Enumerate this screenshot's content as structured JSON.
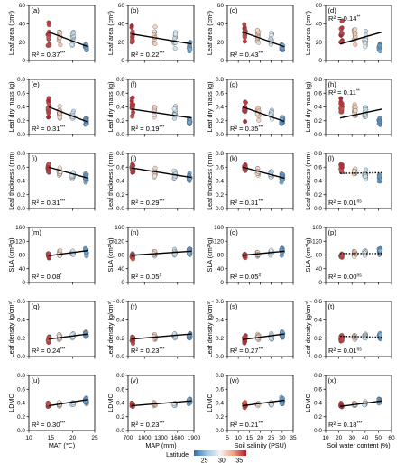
{
  "chart_data": {
    "type": "scatter",
    "legend": {
      "title": "Latitude",
      "position": "bottom-center",
      "ticks": [
        "25",
        "30",
        "35"
      ],
      "color_stops": [
        "#2c6fb0",
        "#9cc7e3",
        "#f4f4f4",
        "#f1a580",
        "#b2182b"
      ],
      "range": [
        22,
        37
      ]
    },
    "columns": [
      {
        "xlabel": "MAT (℃)",
        "xlim": [
          10,
          25
        ],
        "xticks": [
          10,
          15,
          20,
          25
        ],
        "xtick_labels": [
          "10",
          "15",
          "20",
          "25"
        ]
      },
      {
        "xlabel": "MAP (mm)",
        "xlim": [
          700,
          1900
        ],
        "xticks": [
          700,
          1000,
          1300,
          1600,
          1900
        ],
        "xtick_labels": [
          "700",
          "1000",
          "1300",
          "1600",
          "1900"
        ]
      },
      {
        "xlabel": "Soil salinity (PSU)",
        "xlim": [
          5,
          35
        ],
        "xticks": [
          5,
          10,
          15,
          20,
          25,
          30,
          35
        ],
        "xtick_labels": [
          "5",
          "10",
          "15",
          "20",
          "25",
          "30",
          "35"
        ]
      },
      {
        "xlabel": "Soil water content (%)",
        "xlim": [
          10,
          60
        ],
        "xticks": [
          10,
          20,
          30,
          40,
          50,
          60
        ],
        "xtick_labels": [
          "10",
          "20",
          "30",
          "40",
          "50",
          "60"
        ]
      }
    ],
    "rows": [
      {
        "ylabel": "Leaf area (cm²)",
        "ylim": [
          0,
          60
        ],
        "yticks": [
          0,
          20,
          40,
          60
        ],
        "ytick_labels": [
          "0",
          "20",
          "40",
          "60"
        ],
        "groups": [
          {
            "center": 30,
            "spread": 22
          },
          {
            "center": 28,
            "spread": 12
          },
          {
            "center": 22,
            "spread": 12
          },
          {
            "center": 15,
            "spread": 7
          }
        ]
      },
      {
        "ylabel": "Leaf dry mass (g)",
        "ylim": [
          0,
          0.8
        ],
        "yticks": [
          0,
          0.2,
          0.4,
          0.6,
          0.8
        ],
        "ytick_labels": [
          "0.0",
          "0.2",
          "0.4",
          "0.6",
          "0.8"
        ],
        "groups": [
          {
            "center": 0.38,
            "spread": 0.24
          },
          {
            "center": 0.33,
            "spread": 0.14
          },
          {
            "center": 0.3,
            "spread": 0.13
          },
          {
            "center": 0.2,
            "spread": 0.08
          }
        ]
      },
      {
        "ylabel": "Leaf thickness (mm)",
        "ylim": [
          0,
          0.8
        ],
        "yticks": [
          0,
          0.2,
          0.4,
          0.6,
          0.8
        ],
        "ytick_labels": [
          "0.0",
          "0.2",
          "0.4",
          "0.6",
          "0.8"
        ],
        "groups": [
          {
            "center": 0.58,
            "spread": 0.09
          },
          {
            "center": 0.52,
            "spread": 0.09
          },
          {
            "center": 0.5,
            "spread": 0.09
          },
          {
            "center": 0.45,
            "spread": 0.1
          }
        ]
      },
      {
        "ylabel": "SLA (cm²/g)",
        "ylim": [
          0,
          160
        ],
        "yticks": [
          0,
          40,
          80,
          120,
          160
        ],
        "ytick_labels": [
          "0",
          "40",
          "80",
          "120",
          "160"
        ],
        "groups": [
          {
            "center": 78,
            "spread": 12
          },
          {
            "center": 83,
            "spread": 14
          },
          {
            "center": 87,
            "spread": 14
          },
          {
            "center": 92,
            "spread": 16
          }
        ]
      },
      {
        "ylabel": "Leaf density (g/cm³)",
        "ylim": [
          0,
          0.6
        ],
        "yticks": [
          0,
          0.2,
          0.4,
          0.6
        ],
        "ytick_labels": [
          "0.0",
          "0.2",
          "0.4",
          "0.6"
        ],
        "groups": [
          {
            "center": 0.19,
            "spread": 0.06
          },
          {
            "center": 0.21,
            "spread": 0.05
          },
          {
            "center": 0.22,
            "spread": 0.05
          },
          {
            "center": 0.23,
            "spread": 0.06
          }
        ]
      },
      {
        "ylabel": "LDMC",
        "ylim": [
          0,
          0.8
        ],
        "yticks": [
          0,
          0.2,
          0.4,
          0.6,
          0.8
        ],
        "ytick_labels": [
          "0.0",
          "0.2",
          "0.4",
          "0.6",
          "0.8"
        ],
        "groups": [
          {
            "center": 0.37,
            "spread": 0.05
          },
          {
            "center": 0.38,
            "spread": 0.04
          },
          {
            "center": 0.39,
            "spread": 0.04
          },
          {
            "center": 0.43,
            "spread": 0.07
          }
        ]
      }
    ],
    "column_groups": [
      {
        "x": [
          14.5,
          17,
          20,
          23
        ],
        "lat": [
          36,
          31,
          28,
          24
        ]
      },
      {
        "x": [
          780,
          1180,
          1550,
          1820
        ],
        "lat": [
          36,
          31,
          28,
          24
        ]
      },
      {
        "x": [
          13,
          19,
          25,
          30
        ],
        "lat": [
          36,
          31,
          28,
          24
        ]
      },
      {
        "x": [
          22,
          32,
          40,
          51
        ],
        "lat": [
          36,
          31,
          28,
          24
        ]
      }
    ],
    "panels": [
      {
        "label": "(a)",
        "r2": "R² = 0.37",
        "sig": "***",
        "r2_pos": "bottom-left",
        "line": "solid",
        "fit": [
          [
            14.5,
            31
          ],
          [
            23.5,
            15
          ]
        ]
      },
      {
        "label": "(b)",
        "r2": "R² = 0.22",
        "sig": "***",
        "r2_pos": "bottom-left",
        "line": "solid",
        "fit": [
          [
            760,
            29
          ],
          [
            1860,
            18
          ]
        ]
      },
      {
        "label": "(c)",
        "r2": "R² = 0.43",
        "sig": "***",
        "r2_pos": "bottom-left",
        "line": "solid",
        "fit": [
          [
            12,
            31
          ],
          [
            31,
            15
          ]
        ]
      },
      {
        "label": "(d)",
        "r2": "R² = 0.14",
        "sig": "**",
        "r2_pos": "top-left",
        "line": "solid",
        "fit": [
          [
            21,
            18
          ],
          [
            53,
            31
          ]
        ]
      },
      {
        "label": "(e)",
        "r2": "R² = 0.31",
        "sig": "***",
        "r2_pos": "bottom-left",
        "line": "solid",
        "fit": [
          [
            14.5,
            0.4
          ],
          [
            23.5,
            0.18
          ]
        ]
      },
      {
        "label": "(f)",
        "r2": "R² = 0.19",
        "sig": "***",
        "r2_pos": "bottom-left",
        "line": "solid",
        "fit": [
          [
            760,
            0.37
          ],
          [
            1860,
            0.24
          ]
        ]
      },
      {
        "label": "(g)",
        "r2": "R² = 0.35",
        "sig": "***",
        "r2_pos": "bottom-left",
        "line": "solid",
        "fit": [
          [
            12,
            0.4
          ],
          [
            31,
            0.19
          ]
        ]
      },
      {
        "label": "(h)",
        "r2": "R² = 0.11",
        "sig": "**",
        "r2_pos": "top-left",
        "line": "solid",
        "fit": [
          [
            21,
            0.24
          ],
          [
            53,
            0.37
          ]
        ]
      },
      {
        "label": "(i)",
        "r2": "R² = 0.31",
        "sig": "***",
        "r2_pos": "bottom-left",
        "line": "solid",
        "fit": [
          [
            14.5,
            0.6
          ],
          [
            23.5,
            0.44
          ]
        ]
      },
      {
        "label": "(j)",
        "r2": "R² = 0.29",
        "sig": "***",
        "r2_pos": "bottom-left",
        "line": "solid",
        "fit": [
          [
            760,
            0.59
          ],
          [
            1860,
            0.45
          ]
        ]
      },
      {
        "label": "(k)",
        "r2": "R² = 0.31",
        "sig": "***",
        "r2_pos": "bottom-left",
        "line": "solid",
        "fit": [
          [
            12,
            0.6
          ],
          [
            31,
            0.44
          ]
        ]
      },
      {
        "label": "(l)",
        "r2": "R² = 0.01",
        "sig": "ns",
        "r2_pos": "bottom-left",
        "line": "dotted",
        "fit": [
          [
            21,
            0.51
          ],
          [
            53,
            0.52
          ]
        ]
      },
      {
        "label": "(m)",
        "r2": "R² = 0.08",
        "sig": "*",
        "r2_pos": "bottom-left",
        "line": "solid",
        "fit": [
          [
            14.5,
            78
          ],
          [
            23.5,
            93
          ]
        ]
      },
      {
        "label": "(n)",
        "r2": "R² = 0.05",
        "sig": "#",
        "r2_pos": "bottom-left",
        "line": "solid",
        "fit": [
          [
            760,
            79
          ],
          [
            1860,
            91
          ]
        ]
      },
      {
        "label": "(o)",
        "r2": "R² = 0.05",
        "sig": "#",
        "r2_pos": "bottom-left",
        "line": "solid",
        "fit": [
          [
            12,
            79
          ],
          [
            31,
            91
          ]
        ]
      },
      {
        "label": "(p)",
        "r2": "R² = 0.00",
        "sig": "ns",
        "r2_pos": "bottom-left",
        "line": "dotted",
        "fit": [
          [
            21,
            84
          ],
          [
            53,
            84
          ]
        ]
      },
      {
        "label": "(q)",
        "r2": "R² = 0.24",
        "sig": "***",
        "r2_pos": "bottom-left",
        "line": "solid",
        "fit": [
          [
            14.5,
            0.19
          ],
          [
            23.5,
            0.245
          ]
        ]
      },
      {
        "label": "(r)",
        "r2": "R² = 0.23",
        "sig": "***",
        "r2_pos": "bottom-left",
        "line": "solid",
        "fit": [
          [
            760,
            0.19
          ],
          [
            1860,
            0.245
          ]
        ]
      },
      {
        "label": "(s)",
        "r2": "R² = 0.27",
        "sig": "***",
        "r2_pos": "bottom-left",
        "line": "solid",
        "fit": [
          [
            12,
            0.185
          ],
          [
            31,
            0.245
          ]
        ]
      },
      {
        "label": "(t)",
        "r2": "R² = 0.01",
        "sig": "ns",
        "r2_pos": "bottom-left",
        "line": "dotted",
        "fit": [
          [
            21,
            0.22
          ],
          [
            53,
            0.21
          ]
        ]
      },
      {
        "label": "(u)",
        "r2": "R² = 0.30",
        "sig": "***",
        "r2_pos": "bottom-left",
        "line": "solid",
        "fit": [
          [
            14.5,
            0.36
          ],
          [
            23.5,
            0.45
          ]
        ]
      },
      {
        "label": "(v)",
        "r2": "R² = 0.23",
        "sig": "***",
        "r2_pos": "bottom-left",
        "line": "solid",
        "fit": [
          [
            760,
            0.36
          ],
          [
            1860,
            0.43
          ]
        ]
      },
      {
        "label": "(w)",
        "r2": "R² = 0.21",
        "sig": "***",
        "r2_pos": "bottom-left",
        "line": "solid",
        "fit": [
          [
            12,
            0.36
          ],
          [
            31,
            0.44
          ]
        ]
      },
      {
        "label": "(x)",
        "r2": "R² = 0.18",
        "sig": "***",
        "r2_pos": "bottom-left",
        "line": "solid",
        "fit": [
          [
            21,
            0.35
          ],
          [
            53,
            0.43
          ]
        ]
      }
    ]
  }
}
